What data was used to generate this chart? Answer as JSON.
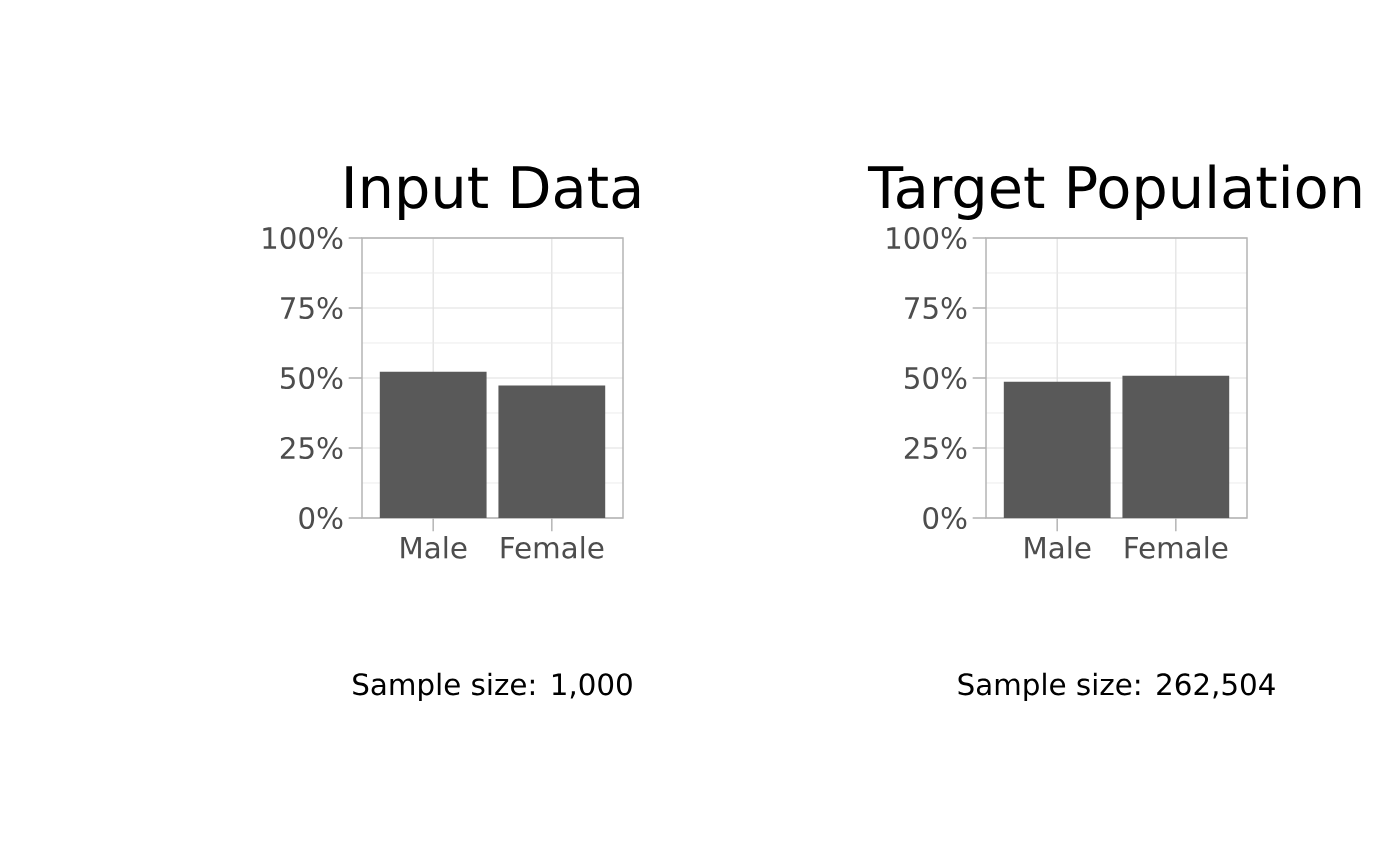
{
  "chart_data": [
    {
      "type": "bar",
      "title": "Input Data",
      "categories": [
        "Male",
        "Female"
      ],
      "values": [
        52.2,
        47.3
      ],
      "color": "#595959",
      "ylim": [
        0,
        100
      ],
      "yticks": [
        {
          "value": 0,
          "label": "0%"
        },
        {
          "value": 25,
          "label": "25%"
        },
        {
          "value": 50,
          "label": "50%"
        },
        {
          "value": 75,
          "label": "75%"
        },
        {
          "value": 100,
          "label": "100%"
        }
      ],
      "grid": true,
      "annotations": [
        "Sample size: 1,000"
      ]
    },
    {
      "type": "bar",
      "title": "Target Population",
      "categories": [
        "Male",
        "Female"
      ],
      "values": [
        48.7,
        50.8
      ],
      "color": "#595959",
      "ylim": [
        0,
        100
      ],
      "yticks": [
        {
          "value": 0,
          "label": "0%"
        },
        {
          "value": 25,
          "label": "25%"
        },
        {
          "value": 50,
          "label": "50%"
        },
        {
          "value": 75,
          "label": "75%"
        },
        {
          "value": 100,
          "label": "100%"
        }
      ],
      "grid": true,
      "annotations": [
        "Sample size: 262,504"
      ]
    }
  ]
}
